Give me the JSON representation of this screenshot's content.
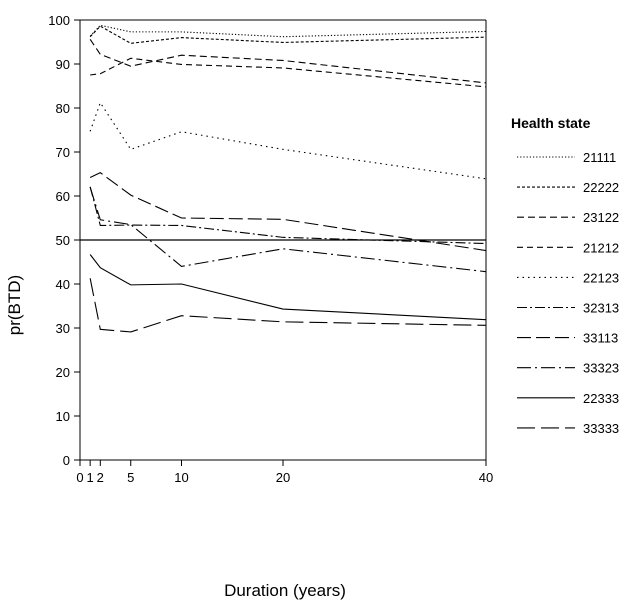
{
  "chart_data": {
    "type": "line",
    "xlabel": "Duration (years)",
    "ylabel": "pr(BTD)",
    "xlim": [
      0,
      40
    ],
    "ylim": [
      0,
      100
    ],
    "x_ticks": [
      0,
      1,
      2,
      5,
      10,
      20,
      40
    ],
    "x_tick_labels": [
      "0",
      "1",
      "2",
      "5",
      "10",
      "20",
      "40"
    ],
    "y_ticks": [
      0,
      10,
      20,
      30,
      40,
      50,
      60,
      70,
      80,
      90,
      100
    ],
    "y_tick_labels": [
      "0",
      "10",
      "20",
      "30",
      "40",
      "50",
      "60",
      "70",
      "80",
      "90",
      "100"
    ],
    "reference_line_y": 50,
    "grid": false,
    "legend_title": "Health state",
    "legend_position": "right",
    "x": [
      1,
      2,
      5,
      10,
      20,
      40
    ],
    "series": [
      {
        "name": "21111",
        "dash": "1.2,2",
        "values": [
          96.3,
          98.8,
          97.3,
          97.3,
          96.2,
          97.4
        ]
      },
      {
        "name": "22222",
        "dash": "3,2",
        "values": [
          96.2,
          98.6,
          94.7,
          96.0,
          94.9,
          96.1
        ]
      },
      {
        "name": "23122",
        "dash": "7,4",
        "values": [
          95.6,
          92.2,
          89.5,
          92.0,
          90.8,
          85.7
        ]
      },
      {
        "name": "21212",
        "dash": "6,4",
        "values": [
          87.5,
          87.8,
          91.3,
          89.9,
          89.1,
          84.8
        ]
      },
      {
        "name": "22123",
        "dash": "1.5,4",
        "values": [
          74.7,
          81.2,
          70.6,
          74.6,
          70.6,
          63.9
        ]
      },
      {
        "name": "32313",
        "dash": "10,3,2,3",
        "values": [
          62.1,
          53.3,
          53.4,
          53.3,
          50.6,
          49.2
        ]
      },
      {
        "name": "33113",
        "dash": "14,5",
        "values": [
          64.2,
          65.3,
          60.2,
          55.0,
          54.7,
          47.6
        ]
      },
      {
        "name": "33323",
        "dash": "14,4,2,4",
        "values": [
          62.0,
          54.6,
          53.5,
          44.0,
          48.0,
          42.8
        ]
      },
      {
        "name": "22333",
        "dash": "",
        "values": [
          46.7,
          43.7,
          39.8,
          40.0,
          34.3,
          31.9
        ]
      },
      {
        "name": "33333",
        "dash": "18,6",
        "values": [
          41.3,
          29.7,
          29.1,
          32.8,
          31.4,
          30.6
        ]
      }
    ]
  }
}
